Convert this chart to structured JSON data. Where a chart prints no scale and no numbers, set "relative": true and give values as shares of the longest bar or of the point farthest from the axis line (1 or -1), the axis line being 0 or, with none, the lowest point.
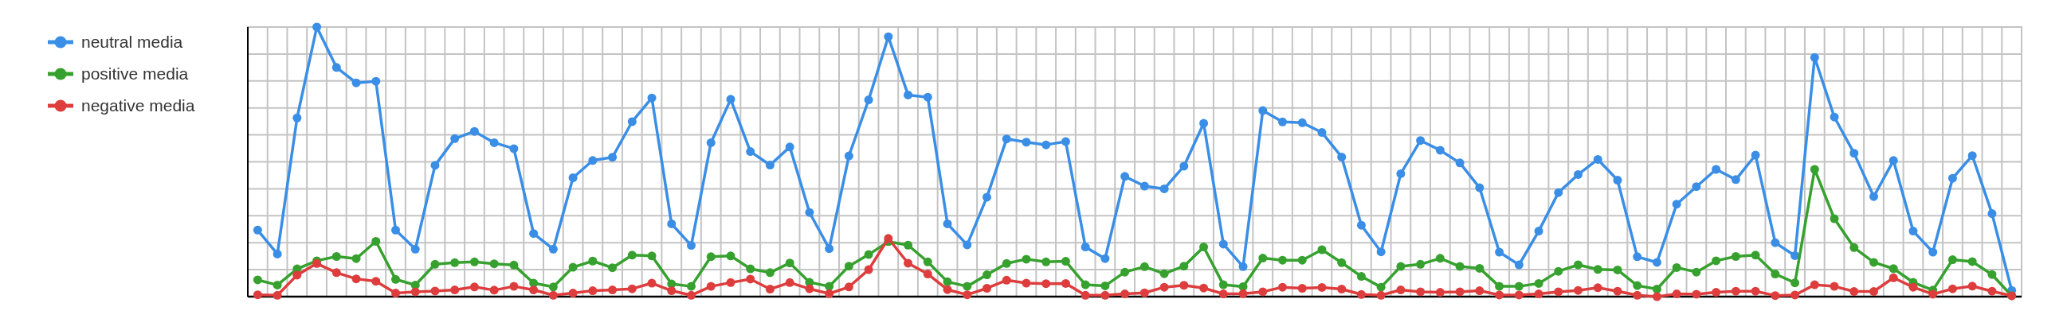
{
  "chart_data": {
    "type": "line",
    "relative": true,
    "grid": true,
    "legend": "left",
    "marker": "circle",
    "line_style": "solid",
    "categories": [
      null,
      null,
      null,
      null,
      null,
      null,
      null,
      null,
      null,
      null,
      null,
      null,
      null,
      null,
      null,
      null,
      null,
      null,
      null,
      null,
      null,
      null,
      null,
      null,
      null,
      null,
      null,
      null,
      null,
      null,
      null,
      null,
      null,
      null,
      null,
      null,
      null,
      null,
      null,
      null,
      null,
      null,
      null,
      null,
      null,
      null,
      null,
      null,
      null,
      null,
      null,
      null,
      null,
      null,
      null,
      null,
      null,
      null,
      null,
      null,
      null,
      null,
      null,
      null,
      null,
      null,
      null,
      null,
      null,
      null,
      null,
      null,
      null,
      null,
      null,
      null,
      null,
      null,
      null,
      null,
      null,
      null,
      null,
      null,
      null,
      null,
      null,
      null,
      null,
      null
    ],
    "series": [
      {
        "name": "neutral media",
        "color": "#3a8ee6",
        "values": [
          0.247,
          0.158,
          0.663,
          1.0,
          0.85,
          0.793,
          0.799,
          0.247,
          0.176,
          0.487,
          0.586,
          0.613,
          0.571,
          0.549,
          0.234,
          0.176,
          0.441,
          0.505,
          0.517,
          0.649,
          0.737,
          0.27,
          0.19,
          0.571,
          0.732,
          0.538,
          0.488,
          0.555,
          0.312,
          0.178,
          0.522,
          0.73,
          0.964,
          0.748,
          0.74,
          0.27,
          0.192,
          0.369,
          0.585,
          0.573,
          0.563,
          0.575,
          0.184,
          0.141,
          0.446,
          0.41,
          0.4,
          0.484,
          0.643,
          0.195,
          0.111,
          0.69,
          0.648,
          0.645,
          0.609,
          0.518,
          0.265,
          0.166,
          0.456,
          0.579,
          0.543,
          0.496,
          0.404,
          0.165,
          0.118,
          0.243,
          0.386,
          0.453,
          0.509,
          0.432,
          0.148,
          0.127,
          0.343,
          0.408,
          0.472,
          0.434,
          0.525,
          0.2,
          0.152,
          0.887,
          0.666,
          0.532,
          0.371,
          0.505,
          0.243,
          0.165,
          0.439,
          0.523,
          0.308,
          0.023
        ]
      },
      {
        "name": "positive media",
        "color": "#36a12e",
        "values": [
          0.062,
          0.043,
          0.103,
          0.133,
          0.149,
          0.141,
          0.205,
          0.064,
          0.043,
          0.12,
          0.126,
          0.129,
          0.122,
          0.117,
          0.05,
          0.036,
          0.109,
          0.132,
          0.107,
          0.154,
          0.151,
          0.047,
          0.038,
          0.148,
          0.151,
          0.103,
          0.089,
          0.125,
          0.053,
          0.038,
          0.113,
          0.156,
          0.204,
          0.191,
          0.129,
          0.055,
          0.038,
          0.081,
          0.123,
          0.139,
          0.129,
          0.131,
          0.044,
          0.04,
          0.091,
          0.111,
          0.085,
          0.113,
          0.184,
          0.044,
          0.037,
          0.143,
          0.135,
          0.135,
          0.174,
          0.126,
          0.075,
          0.035,
          0.112,
          0.12,
          0.142,
          0.112,
          0.105,
          0.038,
          0.038,
          0.049,
          0.094,
          0.118,
          0.101,
          0.099,
          0.041,
          0.028,
          0.108,
          0.091,
          0.133,
          0.149,
          0.154,
          0.084,
          0.051,
          0.472,
          0.289,
          0.182,
          0.127,
          0.104,
          0.053,
          0.024,
          0.137,
          0.13,
          0.082,
          0.003
        ]
      },
      {
        "name": "negative media",
        "color": "#de3d3d",
        "values": [
          0.007,
          0.005,
          0.08,
          0.123,
          0.089,
          0.066,
          0.057,
          0.013,
          0.018,
          0.021,
          0.025,
          0.036,
          0.024,
          0.038,
          0.025,
          0.005,
          0.013,
          0.022,
          0.025,
          0.029,
          0.05,
          0.022,
          0.005,
          0.038,
          0.052,
          0.065,
          0.028,
          0.052,
          0.029,
          0.011,
          0.036,
          0.1,
          0.216,
          0.124,
          0.084,
          0.026,
          0.007,
          0.031,
          0.061,
          0.05,
          0.048,
          0.049,
          0.005,
          0.005,
          0.01,
          0.014,
          0.035,
          0.042,
          0.032,
          0.01,
          0.011,
          0.018,
          0.035,
          0.031,
          0.034,
          0.028,
          0.008,
          0.005,
          0.025,
          0.018,
          0.016,
          0.018,
          0.022,
          0.006,
          0.006,
          0.01,
          0.018,
          0.023,
          0.033,
          0.02,
          0.005,
          0,
          0.01,
          0.009,
          0.016,
          0.02,
          0.02,
          0.004,
          0.006,
          0.044,
          0.038,
          0.019,
          0.019,
          0.07,
          0.035,
          0.009,
          0.029,
          0.039,
          0.02,
          0.003
        ]
      }
    ]
  }
}
